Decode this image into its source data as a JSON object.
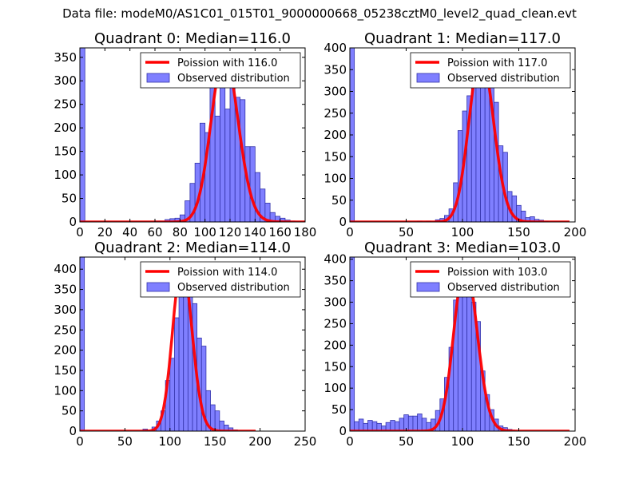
{
  "figure": {
    "suptitle": "Data file: modeM0/AS1C01_015T01_9000000668_05238cztM0_level2_quad_clean.evt",
    "colors": {
      "fit_line": "#ff0000",
      "hist_fill": "#7f7fff",
      "hist_edge": "#3333aa"
    }
  },
  "chart_data": [
    {
      "type": "bar",
      "title": "Quadrant 0: Median=116.0",
      "xlim": [
        0,
        180
      ],
      "ylim": [
        0,
        370
      ],
      "xticks": [
        0,
        20,
        40,
        60,
        80,
        100,
        120,
        140,
        160,
        180
      ],
      "yticks": [
        0,
        50,
        100,
        150,
        200,
        250,
        300,
        350
      ],
      "bin_width": 4,
      "legend": {
        "location": "upper-right",
        "line_label": "Poission with 116.0",
        "bar_label": "Observed distribution"
      },
      "fit": {
        "mean": 116.0,
        "peak": 355
      },
      "bins": [
        {
          "x": 0,
          "count": 370
        },
        {
          "x": 60,
          "count": 2
        },
        {
          "x": 64,
          "count": 2
        },
        {
          "x": 68,
          "count": 5
        },
        {
          "x": 72,
          "count": 7
        },
        {
          "x": 76,
          "count": 8
        },
        {
          "x": 80,
          "count": 15
        },
        {
          "x": 84,
          "count": 45
        },
        {
          "x": 88,
          "count": 82
        },
        {
          "x": 92,
          "count": 125
        },
        {
          "x": 96,
          "count": 210
        },
        {
          "x": 100,
          "count": 190
        },
        {
          "x": 104,
          "count": 295
        },
        {
          "x": 108,
          "count": 225
        },
        {
          "x": 112,
          "count": 310
        },
        {
          "x": 116,
          "count": 240
        },
        {
          "x": 120,
          "count": 305
        },
        {
          "x": 124,
          "count": 265
        },
        {
          "x": 128,
          "count": 260
        },
        {
          "x": 132,
          "count": 160
        },
        {
          "x": 136,
          "count": 160
        },
        {
          "x": 140,
          "count": 105
        },
        {
          "x": 144,
          "count": 70
        },
        {
          "x": 148,
          "count": 40
        },
        {
          "x": 152,
          "count": 20
        },
        {
          "x": 156,
          "count": 12
        },
        {
          "x": 160,
          "count": 8
        },
        {
          "x": 164,
          "count": 4
        },
        {
          "x": 168,
          "count": 2
        }
      ]
    },
    {
      "type": "bar",
      "title": "Quadrant 1: Median=117.0",
      "xlim": [
        0,
        200
      ],
      "ylim": [
        0,
        400
      ],
      "xticks": [
        0,
        50,
        100,
        150,
        200
      ],
      "yticks": [
        0,
        50,
        100,
        150,
        200,
        250,
        300,
        350,
        400
      ],
      "bin_width": 4,
      "legend": {
        "location": "upper-right",
        "line_label": "Poission with 117.0",
        "bar_label": "Observed distribution"
      },
      "fit": {
        "mean": 117.0,
        "peak": 385
      },
      "bins": [
        {
          "x": 0,
          "count": 400
        },
        {
          "x": 60,
          "count": 2
        },
        {
          "x": 68,
          "count": 2
        },
        {
          "x": 76,
          "count": 5
        },
        {
          "x": 80,
          "count": 8
        },
        {
          "x": 84,
          "count": 15
        },
        {
          "x": 88,
          "count": 30
        },
        {
          "x": 92,
          "count": 90
        },
        {
          "x": 96,
          "count": 210
        },
        {
          "x": 100,
          "count": 255
        },
        {
          "x": 104,
          "count": 290
        },
        {
          "x": 108,
          "count": 315
        },
        {
          "x": 112,
          "count": 350
        },
        {
          "x": 116,
          "count": 340
        },
        {
          "x": 120,
          "count": 360
        },
        {
          "x": 124,
          "count": 325
        },
        {
          "x": 128,
          "count": 275
        },
        {
          "x": 132,
          "count": 175
        },
        {
          "x": 136,
          "count": 160
        },
        {
          "x": 140,
          "count": 70
        },
        {
          "x": 144,
          "count": 60
        },
        {
          "x": 148,
          "count": 38
        },
        {
          "x": 152,
          "count": 25
        },
        {
          "x": 156,
          "count": 10
        },
        {
          "x": 160,
          "count": 12
        },
        {
          "x": 164,
          "count": 6
        },
        {
          "x": 168,
          "count": 4
        },
        {
          "x": 172,
          "count": 2
        }
      ]
    },
    {
      "type": "bar",
      "title": "Quadrant 2: Median=114.0",
      "xlim": [
        0,
        250
      ],
      "ylim": [
        0,
        430
      ],
      "xticks": [
        0,
        50,
        100,
        150,
        200,
        250
      ],
      "yticks": [
        0,
        50,
        100,
        150,
        200,
        250,
        300,
        350,
        400
      ],
      "bin_width": 5,
      "legend": {
        "location": "upper-right",
        "line_label": "Poission with 114.0",
        "bar_label": "Observed distribution"
      },
      "fit": {
        "mean": 114.0,
        "peak": 415
      },
      "bins": [
        {
          "x": 0,
          "count": 430
        },
        {
          "x": 70,
          "count": 5
        },
        {
          "x": 80,
          "count": 10
        },
        {
          "x": 85,
          "count": 25
        },
        {
          "x": 90,
          "count": 50
        },
        {
          "x": 95,
          "count": 125
        },
        {
          "x": 100,
          "count": 180
        },
        {
          "x": 105,
          "count": 280
        },
        {
          "x": 110,
          "count": 360
        },
        {
          "x": 115,
          "count": 370
        },
        {
          "x": 120,
          "count": 380
        },
        {
          "x": 125,
          "count": 315
        },
        {
          "x": 130,
          "count": 230
        },
        {
          "x": 135,
          "count": 210
        },
        {
          "x": 140,
          "count": 100
        },
        {
          "x": 145,
          "count": 65
        },
        {
          "x": 150,
          "count": 50
        },
        {
          "x": 155,
          "count": 25
        },
        {
          "x": 160,
          "count": 15
        },
        {
          "x": 165,
          "count": 8
        },
        {
          "x": 170,
          "count": 3
        }
      ]
    },
    {
      "type": "bar",
      "title": "Quadrant 3: Median=103.0",
      "xlim": [
        0,
        200
      ],
      "ylim": [
        0,
        405
      ],
      "xticks": [
        0,
        50,
        100,
        150,
        200
      ],
      "yticks": [
        0,
        50,
        100,
        150,
        200,
        250,
        300,
        350,
        400
      ],
      "bin_width": 4,
      "legend": {
        "location": "upper-right",
        "line_label": "Poission with 103.0",
        "bar_label": "Observed distribution"
      },
      "fit": {
        "mean": 103.0,
        "peak": 390
      },
      "bins": [
        {
          "x": 0,
          "count": 405
        },
        {
          "x": 4,
          "count": 22
        },
        {
          "x": 8,
          "count": 28
        },
        {
          "x": 12,
          "count": 18
        },
        {
          "x": 16,
          "count": 25
        },
        {
          "x": 20,
          "count": 22
        },
        {
          "x": 24,
          "count": 18
        },
        {
          "x": 28,
          "count": 12
        },
        {
          "x": 32,
          "count": 20
        },
        {
          "x": 36,
          "count": 25
        },
        {
          "x": 40,
          "count": 22
        },
        {
          "x": 44,
          "count": 30
        },
        {
          "x": 48,
          "count": 38
        },
        {
          "x": 52,
          "count": 35
        },
        {
          "x": 56,
          "count": 35
        },
        {
          "x": 60,
          "count": 40
        },
        {
          "x": 64,
          "count": 30
        },
        {
          "x": 68,
          "count": 20
        },
        {
          "x": 72,
          "count": 28
        },
        {
          "x": 76,
          "count": 48
        },
        {
          "x": 80,
          "count": 75
        },
        {
          "x": 84,
          "count": 125
        },
        {
          "x": 88,
          "count": 195
        },
        {
          "x": 92,
          "count": 305
        },
        {
          "x": 96,
          "count": 315
        },
        {
          "x": 100,
          "count": 365
        },
        {
          "x": 104,
          "count": 370
        },
        {
          "x": 108,
          "count": 300
        },
        {
          "x": 112,
          "count": 255
        },
        {
          "x": 116,
          "count": 140
        },
        {
          "x": 120,
          "count": 85
        },
        {
          "x": 124,
          "count": 50
        },
        {
          "x": 128,
          "count": 28
        },
        {
          "x": 132,
          "count": 12
        },
        {
          "x": 136,
          "count": 8
        },
        {
          "x": 140,
          "count": 4
        },
        {
          "x": 144,
          "count": 2
        }
      ]
    }
  ]
}
